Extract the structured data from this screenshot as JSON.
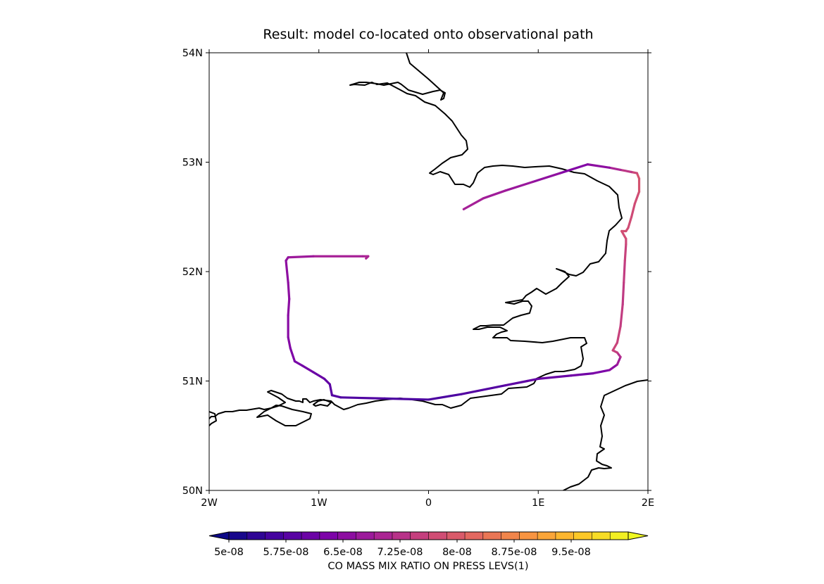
{
  "chart_data": {
    "type": "map_track",
    "title": "Result: model co-located onto observational path",
    "x_axis": {
      "range": [
        -2,
        2
      ],
      "ticks": [
        -2,
        -1,
        0,
        1,
        2
      ],
      "tick_labels": [
        "2W",
        "1W",
        "0",
        "1E",
        "2E"
      ]
    },
    "y_axis": {
      "range": [
        50,
        54
      ],
      "ticks": [
        50,
        51,
        52,
        53,
        54
      ],
      "tick_labels": [
        "50N",
        "51N",
        "52N",
        "53N",
        "54N"
      ]
    },
    "colorbar": {
      "label": "CO MASS MIX RATIO ON PRESS LEVS(1)",
      "colormap": "plasma",
      "min": 5e-08,
      "max": 1.025e-07,
      "tick_values": [
        5e-08,
        5.75e-08,
        6.5e-08,
        7.25e-08,
        8e-08,
        8.75e-08,
        9.5e-08
      ],
      "tick_labels": [
        "5e-08",
        "5.75e-08",
        "6.5e-08",
        "7.25e-08",
        "8e-08",
        "8.75e-08",
        "9.5e-08"
      ],
      "extend": "both"
    },
    "coastline_color": "#000000",
    "track": {
      "lon": [
        -0.57,
        -0.55,
        -0.6,
        -1.05,
        -1.28,
        -1.3,
        -1.28,
        -1.27,
        -1.28,
        -1.28,
        -1.26,
        -1.22,
        -1.15,
        -1.05,
        -0.95,
        -0.9,
        -0.88,
        -0.8,
        -0.4,
        0.0,
        0.3,
        0.7,
        0.9,
        1.0,
        1.3,
        1.5,
        1.65,
        1.72,
        1.75,
        1.72,
        1.68,
        1.72,
        1.75,
        1.77,
        1.78,
        1.79,
        1.8,
        1.8,
        1.76,
        1.8,
        1.82,
        1.85,
        1.88,
        1.92,
        1.92,
        1.9,
        1.85,
        1.75,
        1.65,
        1.45,
        1.2,
        0.95,
        0.7,
        0.5,
        0.32
      ],
      "lat": [
        52.12,
        52.14,
        52.14,
        52.14,
        52.13,
        52.1,
        51.9,
        51.75,
        51.6,
        51.4,
        51.3,
        51.18,
        51.14,
        51.08,
        51.02,
        50.97,
        50.87,
        50.85,
        50.84,
        50.83,
        50.88,
        50.96,
        51.0,
        51.02,
        51.05,
        51.07,
        51.1,
        51.15,
        51.22,
        51.26,
        51.28,
        51.35,
        51.5,
        51.7,
        51.9,
        52.1,
        52.25,
        52.3,
        52.37,
        52.37,
        52.4,
        52.5,
        52.62,
        52.73,
        52.85,
        52.9,
        52.91,
        52.93,
        52.95,
        52.98,
        52.9,
        52.82,
        52.74,
        52.67,
        52.57
      ],
      "value": [
        7.05e-08,
        7.05e-08,
        7e-08,
        6.9e-08,
        6.7e-08,
        6.6e-08,
        6.55e-08,
        6.55e-08,
        6.5e-08,
        6.45e-08,
        6.4e-08,
        6.3e-08,
        6.2e-08,
        6.1e-08,
        6e-08,
        5.95e-08,
        5.8e-08,
        5.75e-08,
        5.7e-08,
        5.65e-08,
        5.7e-08,
        5.85e-08,
        5.95e-08,
        6e-08,
        6.1e-08,
        6.2e-08,
        6.4e-08,
        6.7e-08,
        7e-08,
        7.4e-08,
        7.6e-08,
        7.6e-08,
        7.5e-08,
        7.4e-08,
        7.4e-08,
        7.5e-08,
        7.6e-08,
        7.7e-08,
        7.8e-08,
        7.8e-08,
        7.75e-08,
        7.7e-08,
        7.7e-08,
        7.8e-08,
        7.9e-08,
        7.8e-08,
        7.5e-08,
        7.2e-08,
        6.8e-08,
        6.3e-08,
        6.5e-08,
        6.7e-08,
        6.8e-08,
        6.9e-08,
        6.95e-08
      ]
    }
  }
}
